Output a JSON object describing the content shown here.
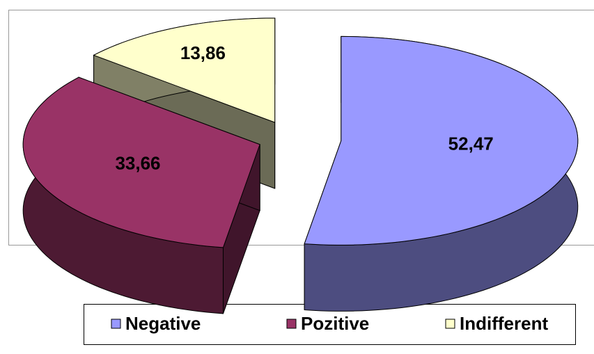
{
  "chart_data": {
    "type": "pie",
    "categories": [
      "Negative",
      "Pozitive",
      "Indifferent"
    ],
    "values": [
      52.47,
      33.66,
      13.86
    ],
    "value_labels": [
      "52,47",
      "33,66",
      "13,86"
    ],
    "colors": [
      "#9999ff",
      "#993366",
      "#ffffcc"
    ]
  }
}
